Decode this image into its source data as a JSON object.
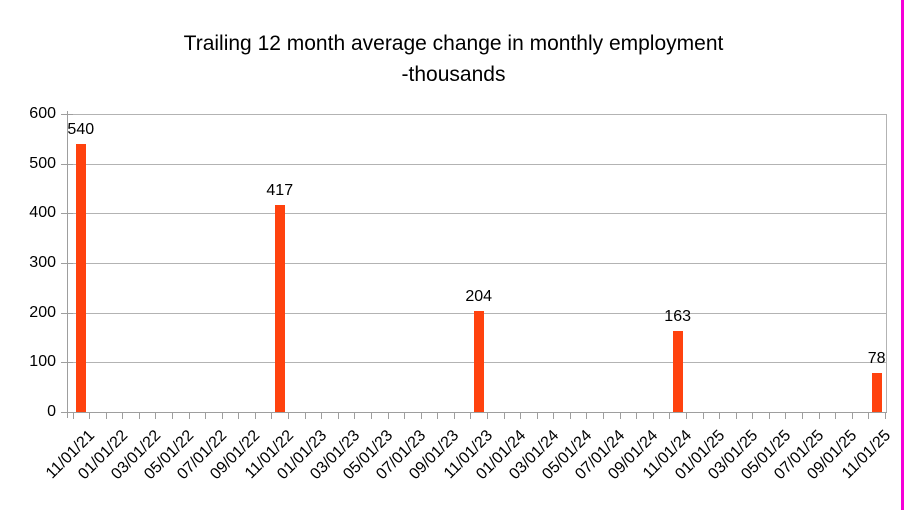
{
  "page": {
    "background": "#ffffff",
    "right_border_color": "#f500d8"
  },
  "chart_data": {
    "type": "bar",
    "title": "Trailing 12 month average change in monthly employment",
    "subtitle": "-thousands",
    "bars": [
      {
        "label": "11/01/21",
        "value": 540
      },
      {
        "label": "11/01/22",
        "value": 417
      },
      {
        "label": "11/01/23",
        "value": 204
      },
      {
        "label": "11/01/24",
        "value": 163
      },
      {
        "label": "11/01/25",
        "value": 78
      }
    ],
    "x_tick_labels": [
      "11/01/21",
      "01/01/22",
      "03/01/22",
      "05/01/22",
      "07/01/22",
      "09/01/22",
      "11/01/22",
      "01/01/23",
      "03/01/23",
      "05/01/23",
      "07/01/23",
      "09/01/23",
      "11/01/23",
      "01/01/24",
      "03/01/24",
      "05/01/24",
      "07/01/24",
      "09/01/24",
      "11/01/24",
      "01/01/25",
      "03/01/25",
      "05/01/25",
      "07/01/25",
      "09/01/25",
      "11/01/25"
    ],
    "y_ticks": [
      0,
      100,
      200,
      300,
      400,
      500,
      600
    ],
    "ylim": [
      0,
      600
    ],
    "grid": "horizontal",
    "legend": "none",
    "x_label_rotation_deg": 45,
    "bar_color": "#ff420e",
    "grid_color": "#b3b3b3",
    "axis_color": "#9e9e9e",
    "text_color": "#000000"
  }
}
